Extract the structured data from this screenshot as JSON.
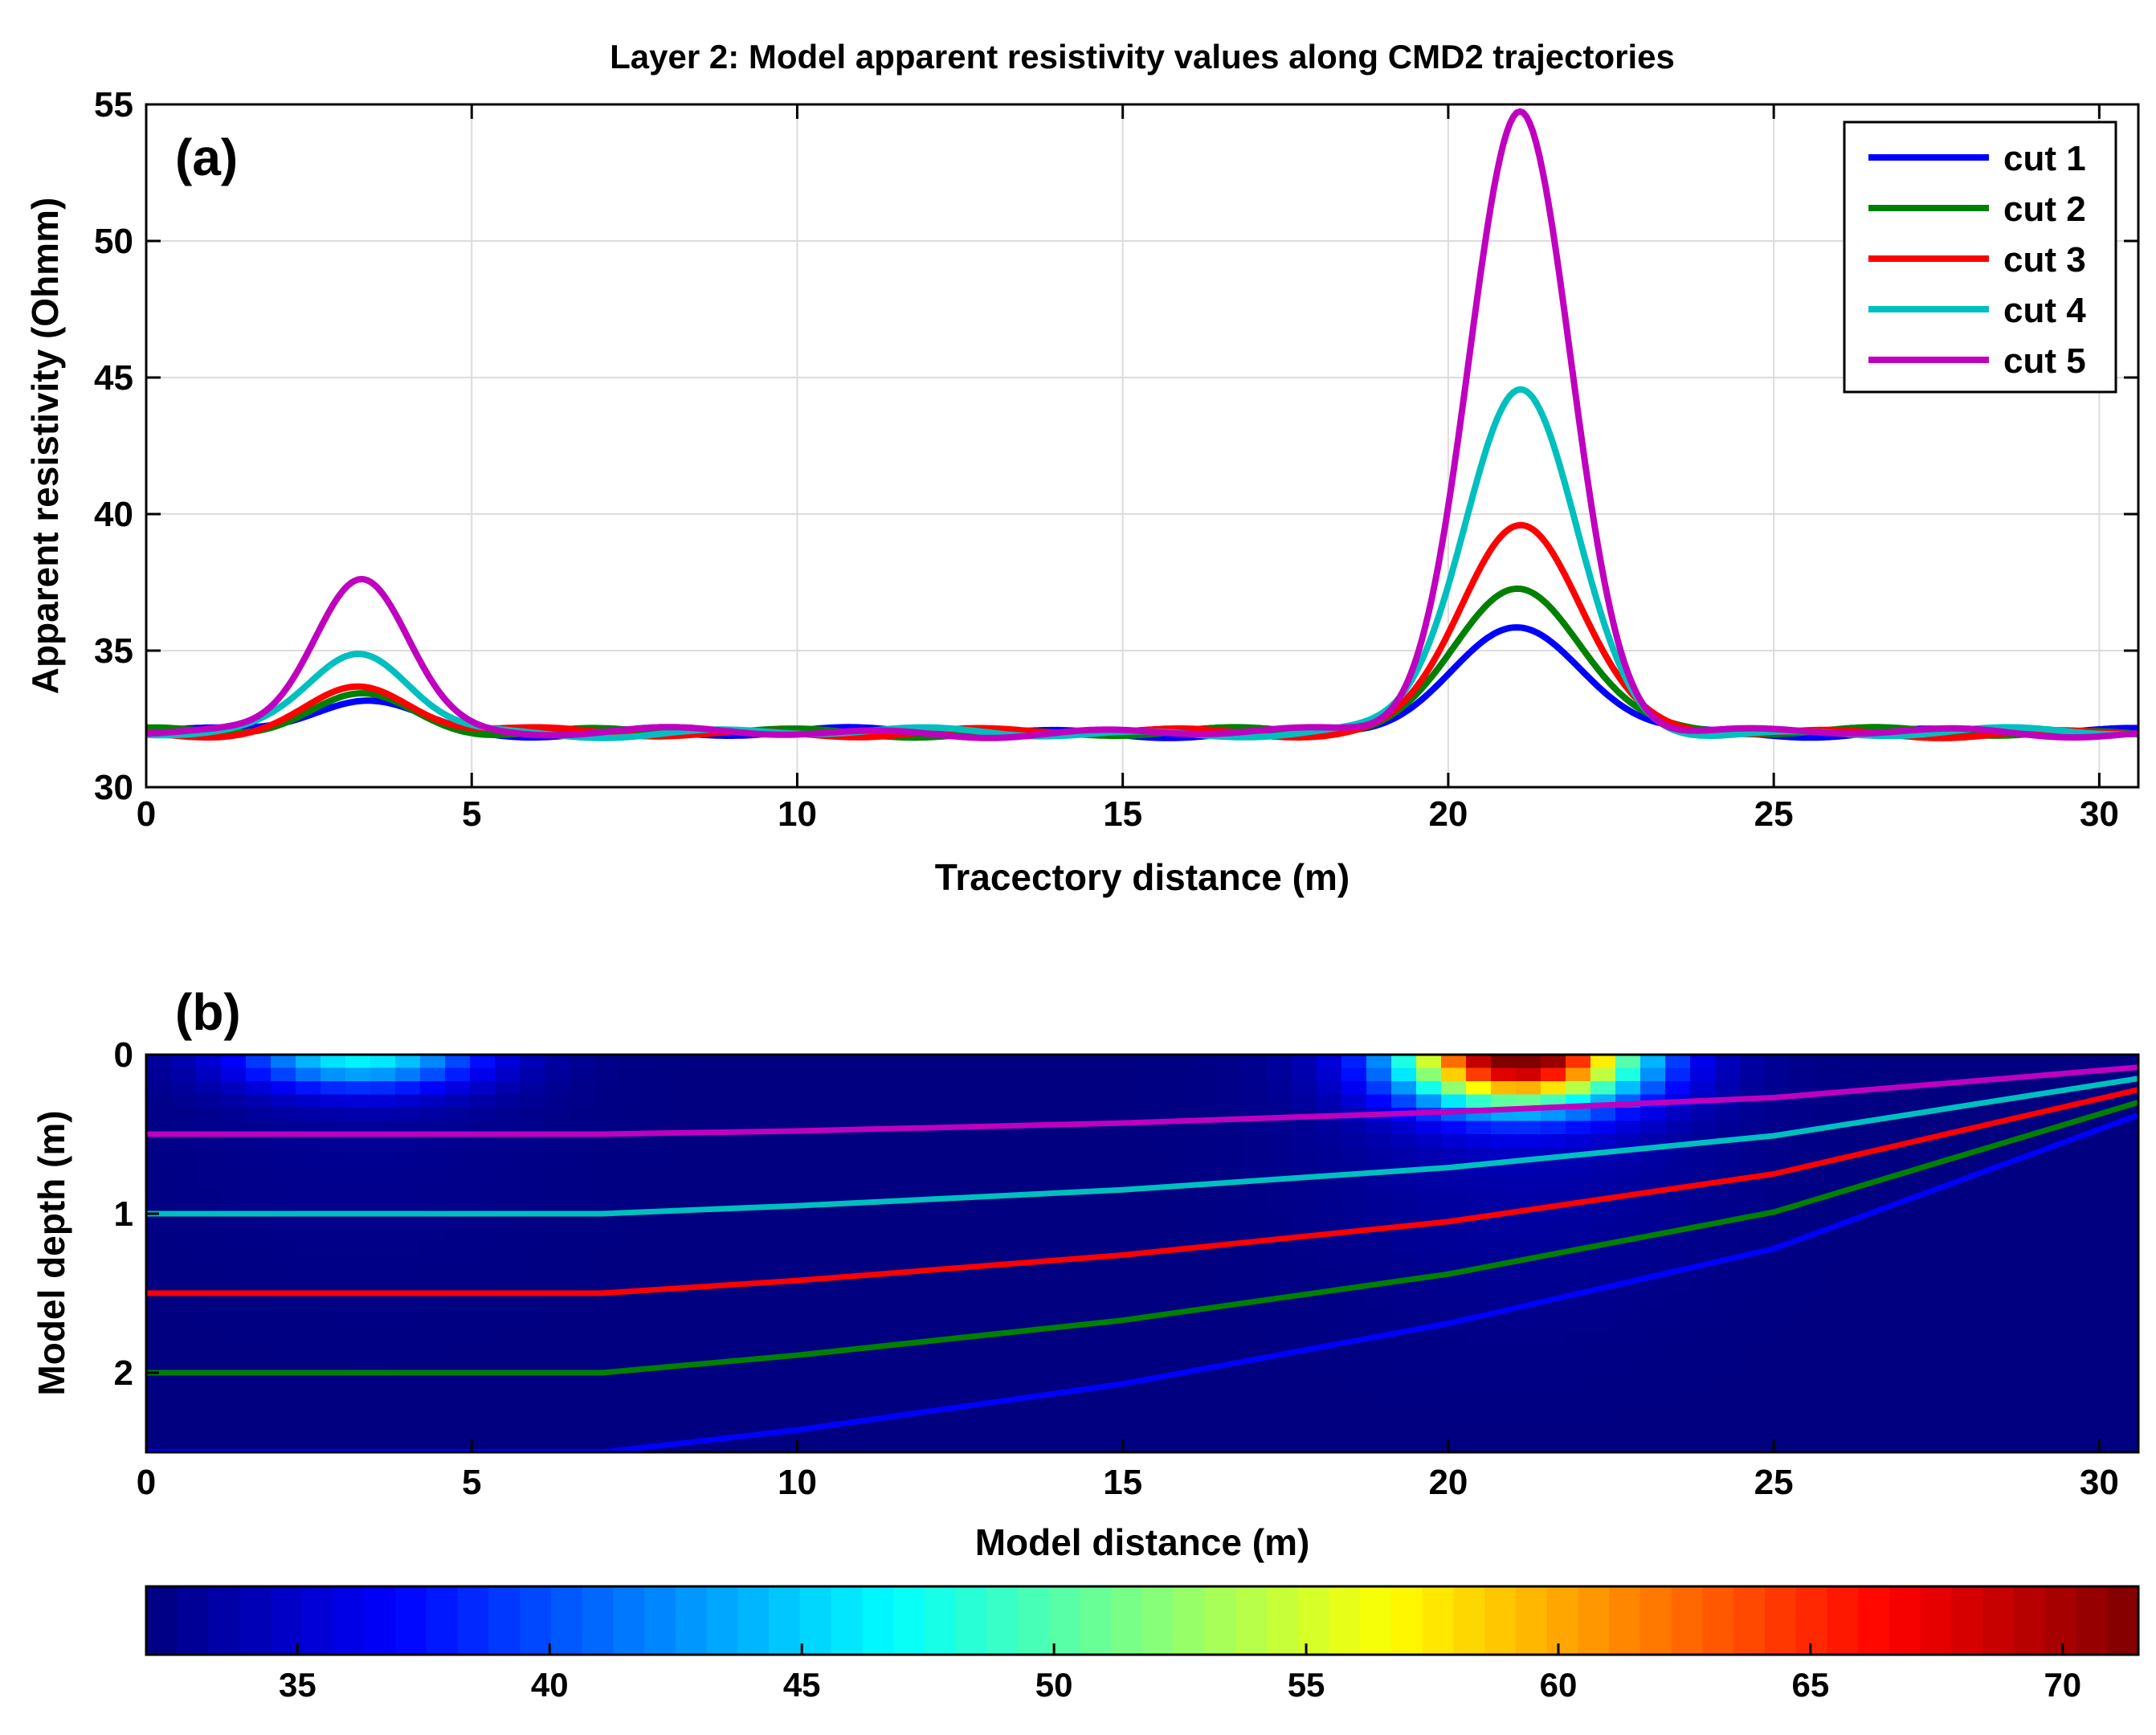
{
  "figure_title": "Layer 2: Model apparent resistivity values along CMD2 trajectories",
  "chart_data": [
    {
      "type": "line",
      "panel": "(a)",
      "title": "Layer 2: Model apparent resistivity values along CMD2 trajectories",
      "xlabel": "Tracectory distance (m)",
      "ylabel": "Apparent resistivity (Ohmm)",
      "xlim": [
        0,
        30.6
      ],
      "ylim": [
        30,
        55
      ],
      "xticks": [
        0,
        5,
        10,
        15,
        20,
        25,
        30
      ],
      "yticks": [
        30,
        35,
        40,
        45,
        50,
        55
      ],
      "grid": true,
      "legend_position": "top-right",
      "baseline": 32,
      "series": [
        {
          "name": "cut 1",
          "color": "#0000ff",
          "peak1": {
            "x": 3.3,
            "y": 33.1,
            "width": 0.8
          },
          "peak2": {
            "x": 21.1,
            "y": 35.7,
            "width": 1.0
          }
        },
        {
          "name": "cut 2",
          "color": "#008000",
          "peak1": {
            "x": 3.3,
            "y": 33.4,
            "width": 0.8
          },
          "peak2": {
            "x": 21.1,
            "y": 37.4,
            "width": 0.95
          }
        },
        {
          "name": "cut 3",
          "color": "#ff0000",
          "peak1": {
            "x": 3.3,
            "y": 33.6,
            "width": 0.78
          },
          "peak2": {
            "x": 21.1,
            "y": 39.7,
            "width": 0.9
          }
        },
        {
          "name": "cut 4",
          "color": "#00bfbf",
          "peak1": {
            "x": 3.3,
            "y": 34.9,
            "width": 0.75
          },
          "peak2": {
            "x": 21.1,
            "y": 44.5,
            "width": 0.85
          }
        },
        {
          "name": "cut 5",
          "color": "#bf00bf",
          "peak1": {
            "x": 3.3,
            "y": 37.8,
            "width": 0.72
          },
          "peak2": {
            "x": 21.1,
            "y": 54.7,
            "width": 0.78
          }
        }
      ]
    },
    {
      "type": "heatmap",
      "panel": "(b)",
      "xlabel": "Model distance (m)",
      "ylabel": "Model depth (m)",
      "xlim": [
        0,
        30.6
      ],
      "ylim": [
        0,
        2.5
      ],
      "xticks": [
        0,
        5,
        10,
        15,
        20,
        25,
        30
      ],
      "yticks": [
        0,
        1,
        2
      ],
      "background_value": 32,
      "anomalies": [
        {
          "x": 3.3,
          "depth": 0,
          "value": 46
        },
        {
          "x": 21.1,
          "depth": 0,
          "value": 72
        }
      ],
      "trajectories": [
        {
          "name": "cut 1",
          "color": "#0000ff",
          "points": [
            [
              0,
              2.5
            ],
            [
              7,
              2.5
            ],
            [
              10,
              2.36
            ],
            [
              15,
              2.07
            ],
            [
              20,
              1.69
            ],
            [
              25,
              1.22
            ],
            [
              30.6,
              0.38
            ]
          ]
        },
        {
          "name": "cut 2",
          "color": "#008000",
          "points": [
            [
              0,
              2.0
            ],
            [
              7,
              2.0
            ],
            [
              10,
              1.89
            ],
            [
              15,
              1.67
            ],
            [
              20,
              1.38
            ],
            [
              25,
              0.99
            ],
            [
              30.6,
              0.3
            ]
          ]
        },
        {
          "name": "cut 3",
          "color": "#ff0000",
          "points": [
            [
              0,
              1.5
            ],
            [
              7,
              1.5
            ],
            [
              10,
              1.42
            ],
            [
              15,
              1.26
            ],
            [
              20,
              1.05
            ],
            [
              25,
              0.75
            ],
            [
              30.6,
              0.22
            ]
          ]
        },
        {
          "name": "cut 4",
          "color": "#00bfbf",
          "points": [
            [
              0,
              1.0
            ],
            [
              7,
              1.0
            ],
            [
              10,
              0.95
            ],
            [
              15,
              0.85
            ],
            [
              20,
              0.71
            ],
            [
              25,
              0.51
            ],
            [
              30.6,
              0.15
            ]
          ]
        },
        {
          "name": "cut 5",
          "color": "#bf00bf",
          "points": [
            [
              0,
              0.5
            ],
            [
              7,
              0.5
            ],
            [
              10,
              0.48
            ],
            [
              15,
              0.43
            ],
            [
              20,
              0.36
            ],
            [
              25,
              0.27
            ],
            [
              30.6,
              0.08
            ]
          ]
        }
      ],
      "colorbar": {
        "min": 32,
        "max": 71.5,
        "ticks": [
          35,
          40,
          45,
          50,
          55,
          60,
          65,
          70
        ]
      }
    }
  ]
}
